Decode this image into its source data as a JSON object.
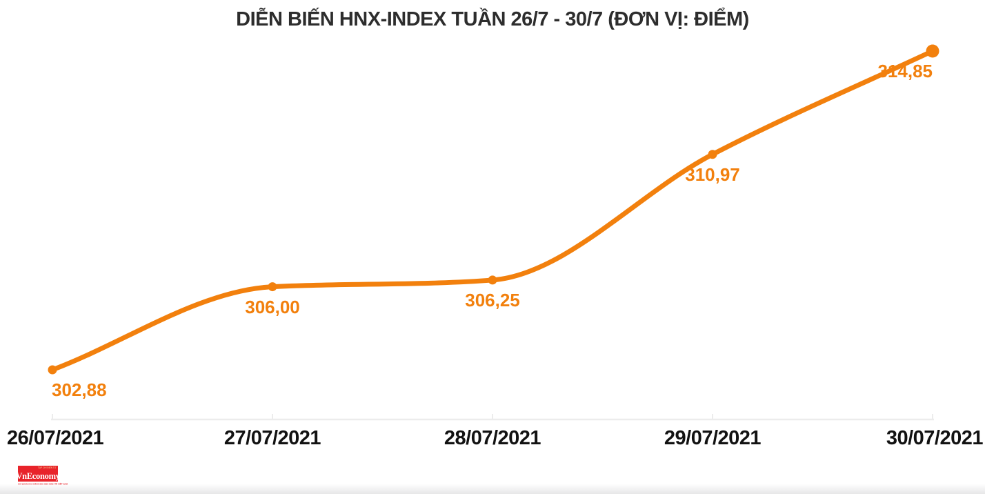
{
  "title": "DIỄN BIẾN HNX-INDEX TUẦN 26/7 - 30/7 (ĐƠN VỊ: ĐIỂM)",
  "colors": {
    "line": "#F2800D",
    "value_label": "#F2800D",
    "axis_text": "#121212",
    "title_text": "#2D2D2D",
    "axis_line": "#ECECEC",
    "logo_red": "#E8232A"
  },
  "chart_data": {
    "type": "line",
    "title": "DIỄN BIẾN HNX-INDEX TUẦN 26/7 - 30/7 (ĐƠN VỊ: ĐIỂM)",
    "x": [
      "26/07/2021",
      "27/07/2021",
      "28/07/2021",
      "29/07/2021",
      "30/07/2021"
    ],
    "values": [
      302.88,
      306.0,
      306.25,
      310.97,
      314.85
    ],
    "value_labels": [
      "302,88",
      "306,00",
      "306,25",
      "310,97",
      "314,85"
    ],
    "unit": "ĐIỂM",
    "ylim": [
      302.88,
      314.85
    ],
    "grid": false,
    "legend": "none",
    "line_color": "#F2800D",
    "smooth": true
  },
  "logo": {
    "name": "VnEconomy",
    "sub_top": "TẠP CHÍ ĐIỆN TỬ",
    "tagline": "CƠ QUAN CỦA HỘI KHOA HỌC KINH TẾ VIỆT NAM"
  }
}
